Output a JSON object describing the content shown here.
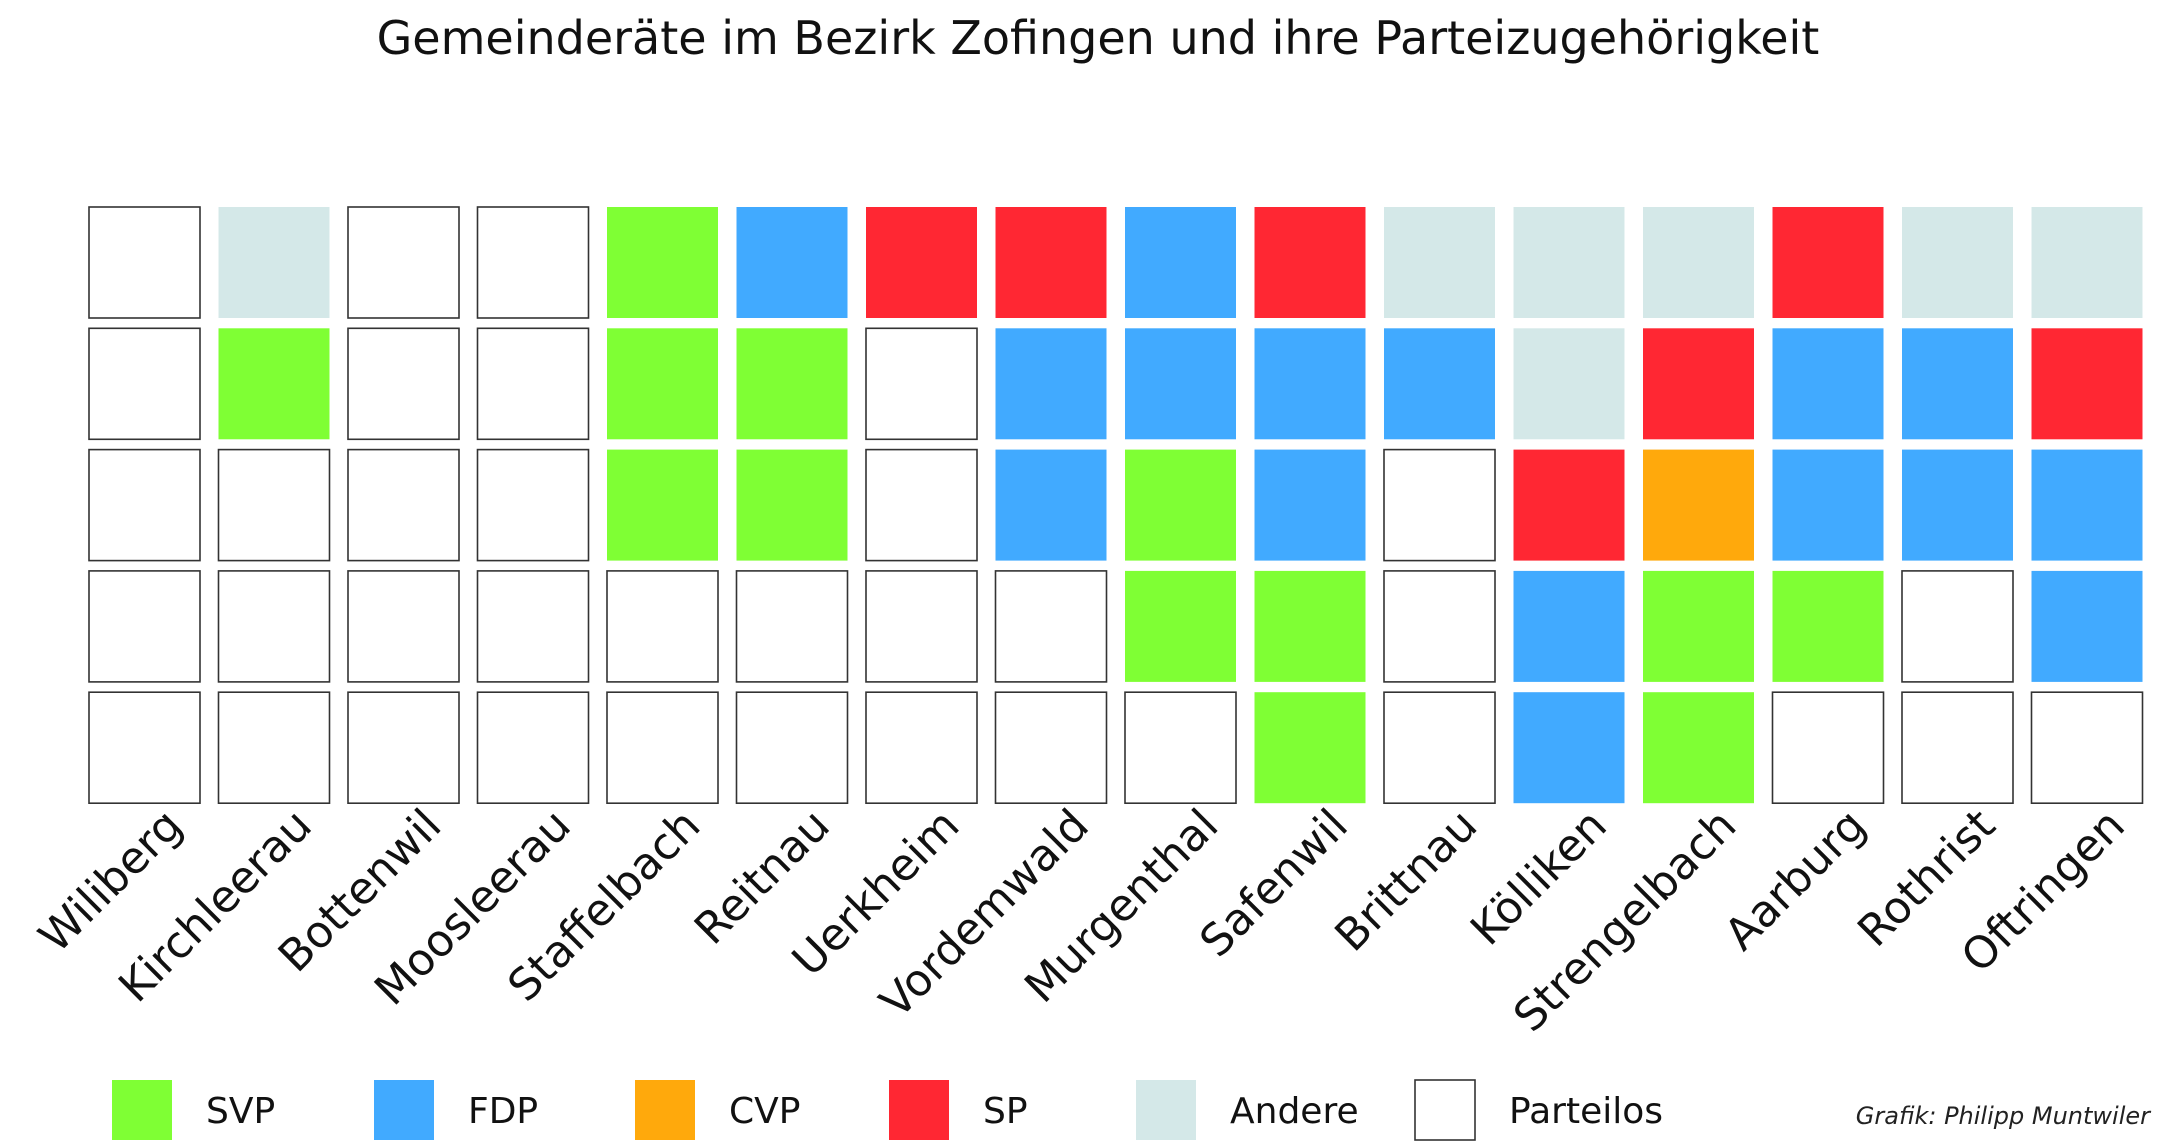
{
  "chart_data": {
    "type": "heatmap",
    "title": "Gemeinderäte im Bezirk Zofingen und ihre Parteizugehörigkeit",
    "categories": [
      "Wiliberg",
      "Kirchleerau",
      "Bottenwil",
      "Moosleerau",
      "Staffelbach",
      "Reitnau",
      "Uerkheim",
      "Vordemwald",
      "Murgenthal",
      "Safenwil",
      "Brittnau",
      "Kölliken",
      "Strengelbach",
      "Aarburg",
      "Rothrist",
      "Oftringen"
    ],
    "seats": [
      [
        "Parteilos",
        "Parteilos",
        "Parteilos",
        "Parteilos",
        "Parteilos"
      ],
      [
        "Andere",
        "SVP",
        "Parteilos",
        "Parteilos",
        "Parteilos"
      ],
      [
        "Parteilos",
        "Parteilos",
        "Parteilos",
        "Parteilos",
        "Parteilos"
      ],
      [
        "Parteilos",
        "Parteilos",
        "Parteilos",
        "Parteilos",
        "Parteilos"
      ],
      [
        "SVP",
        "SVP",
        "SVP",
        "Parteilos",
        "Parteilos"
      ],
      [
        "FDP",
        "SVP",
        "SVP",
        "Parteilos",
        "Parteilos"
      ],
      [
        "SP",
        "Parteilos",
        "Parteilos",
        "Parteilos",
        "Parteilos"
      ],
      [
        "SP",
        "FDP",
        "FDP",
        "Parteilos",
        "Parteilos"
      ],
      [
        "FDP",
        "FDP",
        "SVP",
        "SVP",
        "Parteilos"
      ],
      [
        "SP",
        "FDP",
        "FDP",
        "SVP",
        "SVP"
      ],
      [
        "Andere",
        "FDP",
        "Parteilos",
        "Parteilos",
        "Parteilos"
      ],
      [
        "Andere",
        "Andere",
        "SP",
        "FDP",
        "FDP"
      ],
      [
        "Andere",
        "SP",
        "CVP",
        "SVP",
        "SVP"
      ],
      [
        "SP",
        "FDP",
        "FDP",
        "SVP",
        "Parteilos"
      ],
      [
        "Andere",
        "FDP",
        "FDP",
        "Parteilos",
        "Parteilos"
      ],
      [
        "Andere",
        "SP",
        "FDP",
        "FDP",
        "Parteilos"
      ]
    ],
    "legend": [
      {
        "name": "SVP",
        "color": "#7fff34"
      },
      {
        "name": "FDP",
        "color": "#41aaff"
      },
      {
        "name": "CVP",
        "color": "#ffa90c"
      },
      {
        "name": "SP",
        "color": "#ff2733"
      },
      {
        "name": "Andere",
        "color": "#d4e8e8"
      },
      {
        "name": "Parteilos",
        "color": "#ffffff"
      }
    ],
    "legend_placement": "bottom",
    "credit": "Grafik: Philipp Muntwiler"
  }
}
